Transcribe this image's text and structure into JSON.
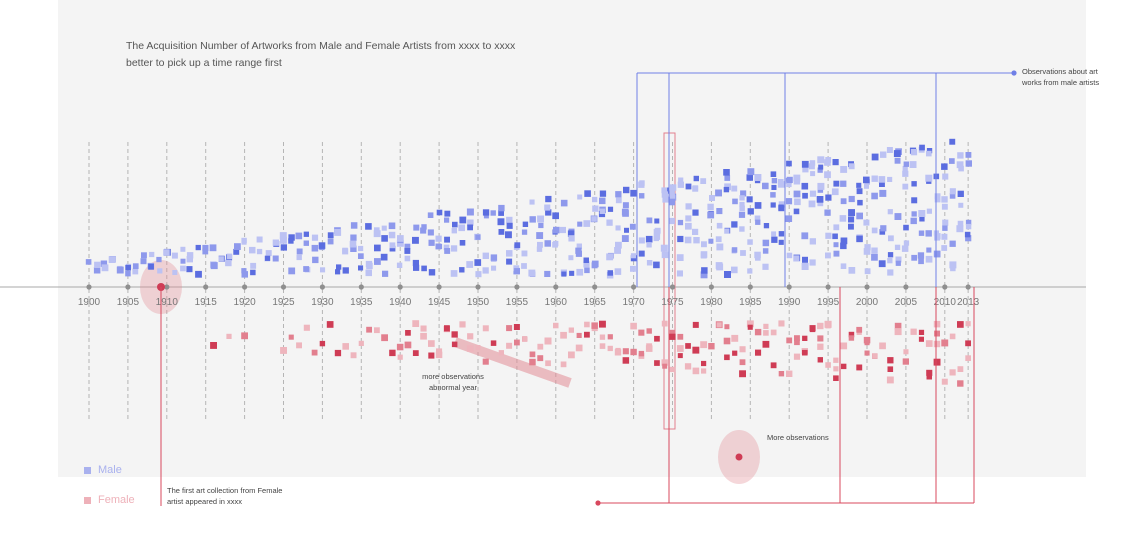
{
  "chart_data": {
    "type": "scatter",
    "title": "The Acquisition Number of Artworks from Male and Female Artists from xxxx to xxxx",
    "subtitle": "better to pick up a time range first",
    "x_ticks": [
      1900,
      1905,
      1910,
      1915,
      1920,
      1925,
      1930,
      1935,
      1940,
      1945,
      1950,
      1955,
      1960,
      1965,
      1970,
      1975,
      1980,
      1985,
      1990,
      1995,
      2000,
      2005,
      2010,
      2013
    ],
    "legend": [
      {
        "name": "Male",
        "color": "#a9b1ee"
      },
      {
        "name": "Female",
        "color": "#eeb1b9"
      }
    ],
    "annotations": {
      "male_observations": "Observations about art works from male artists",
      "first_female": "The first art collection from Female artist appeared in xxxx",
      "abnormal": "more observations abnormal year",
      "more_observations": "More observations"
    },
    "colors": {
      "male_light": "#bcc2f3",
      "male_mid": "#8e99ec",
      "male_dark": "#5b6de0",
      "female_light": "#eeb5bd",
      "female_mid": "#e27f8e",
      "female_dark": "#cf3c55",
      "male_line": "#6f7fe6",
      "female_line": "#d8485e"
    }
  }
}
